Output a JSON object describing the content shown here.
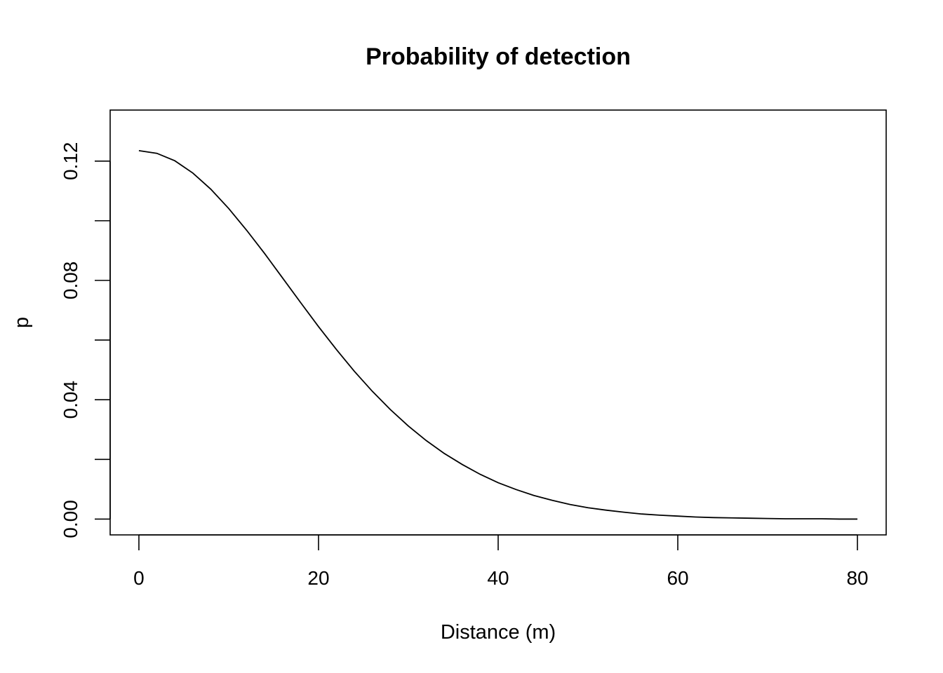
{
  "chart_data": {
    "type": "line",
    "title": "Probability of detection",
    "xlabel": "Distance (m)",
    "ylabel": "p",
    "xlim": [
      -3.2,
      83.2
    ],
    "ylim": [
      -0.0053,
      0.1371
    ],
    "xticks": [
      0,
      20,
      40,
      60,
      80
    ],
    "xtick_labels": [
      "0",
      "20",
      "40",
      "60",
      "80"
    ],
    "yticks": [
      0.0,
      0.02,
      0.04,
      0.06,
      0.08,
      0.1,
      0.12
    ],
    "ytick_labels": [
      "0.00",
      "",
      "0.04",
      "",
      "0.08",
      "",
      "0.12"
    ],
    "grid": false,
    "legend": "none",
    "series": [
      {
        "x": [
          0,
          2,
          4,
          6,
          8,
          10,
          12,
          14,
          16,
          18,
          20,
          22,
          24,
          26,
          28,
          30,
          32,
          34,
          36,
          38,
          40,
          42,
          44,
          46,
          48,
          50,
          52,
          54,
          56,
          58,
          60,
          62,
          64,
          66,
          68,
          70,
          72,
          74,
          76,
          78,
          80
        ],
        "y": [
          0.1235,
          0.1226,
          0.1201,
          0.116,
          0.1106,
          0.1041,
          0.0968,
          0.089,
          0.0808,
          0.0726,
          0.0645,
          0.0568,
          0.0495,
          0.0428,
          0.0367,
          0.0312,
          0.0263,
          0.022,
          0.0183,
          0.015,
          0.0122,
          0.0099,
          0.0079,
          0.0063,
          0.0049,
          0.0038,
          0.003,
          0.0023,
          0.0017,
          0.0013,
          0.001,
          0.0007,
          0.0005,
          0.0004,
          0.0003,
          0.0002,
          0.0001,
          0.0001,
          0.0001,
          0.0,
          0.0
        ]
      }
    ]
  }
}
